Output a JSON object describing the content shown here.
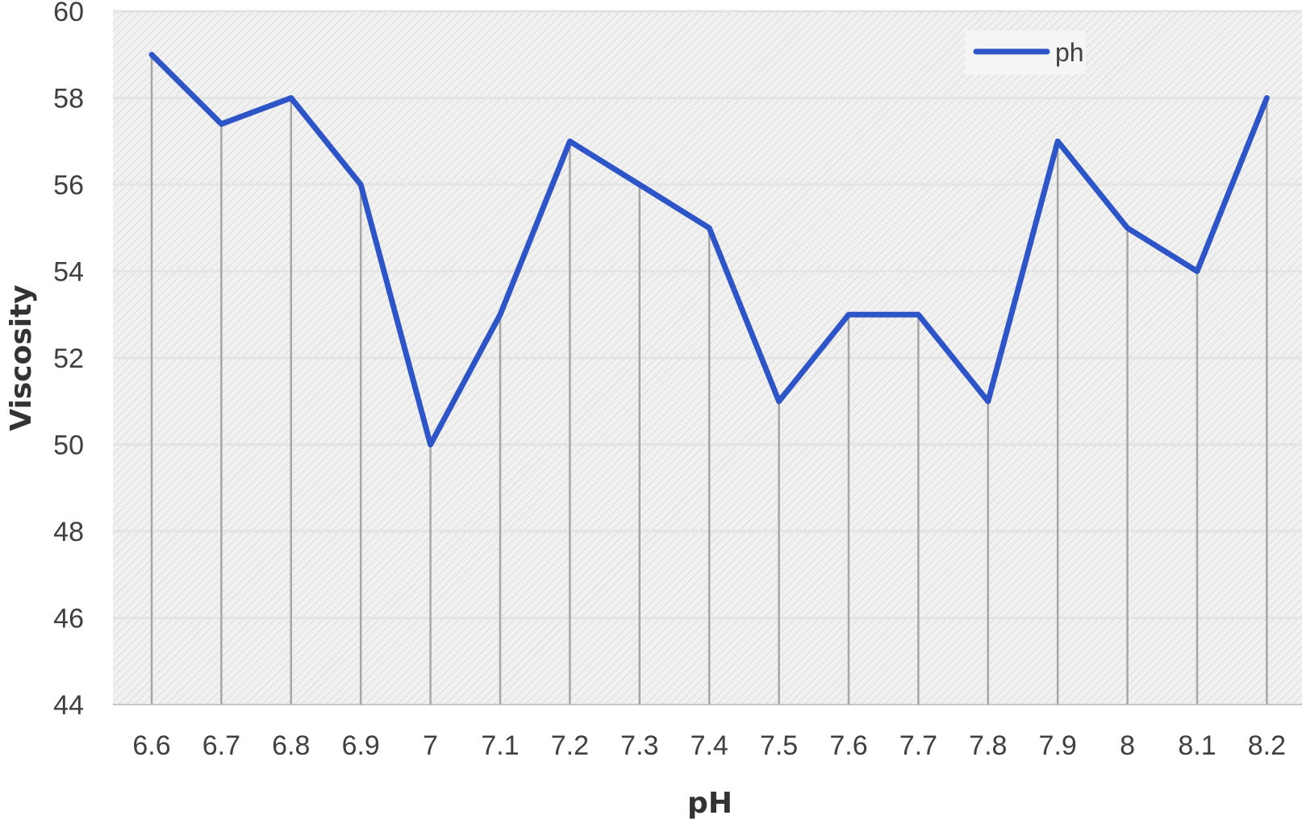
{
  "chart_data": {
    "type": "line",
    "title": "",
    "xlabel": "pH",
    "ylabel": "Viscosity",
    "categories": [
      "6.6",
      "6.7",
      "6.8",
      "6.9",
      "7",
      "7.1",
      "7.2",
      "7.3",
      "7.4",
      "7.5",
      "7.6",
      "7.7",
      "7.8",
      "7.9",
      "8",
      "8.1",
      "8.2"
    ],
    "series": [
      {
        "name": "ph",
        "values": [
          59,
          57.4,
          58,
          56,
          50,
          53,
          57,
          56,
          55,
          51,
          53,
          53,
          51,
          57,
          55,
          54,
          58
        ],
        "color": "#2E55C8"
      }
    ],
    "ylim": [
      44,
      60
    ],
    "yticks": [
      44,
      46,
      48,
      50,
      52,
      54,
      56,
      58,
      60
    ],
    "grid": true,
    "drop_lines": true,
    "plot_background": "hatched light gray",
    "legend": {
      "position": "top-right"
    }
  }
}
